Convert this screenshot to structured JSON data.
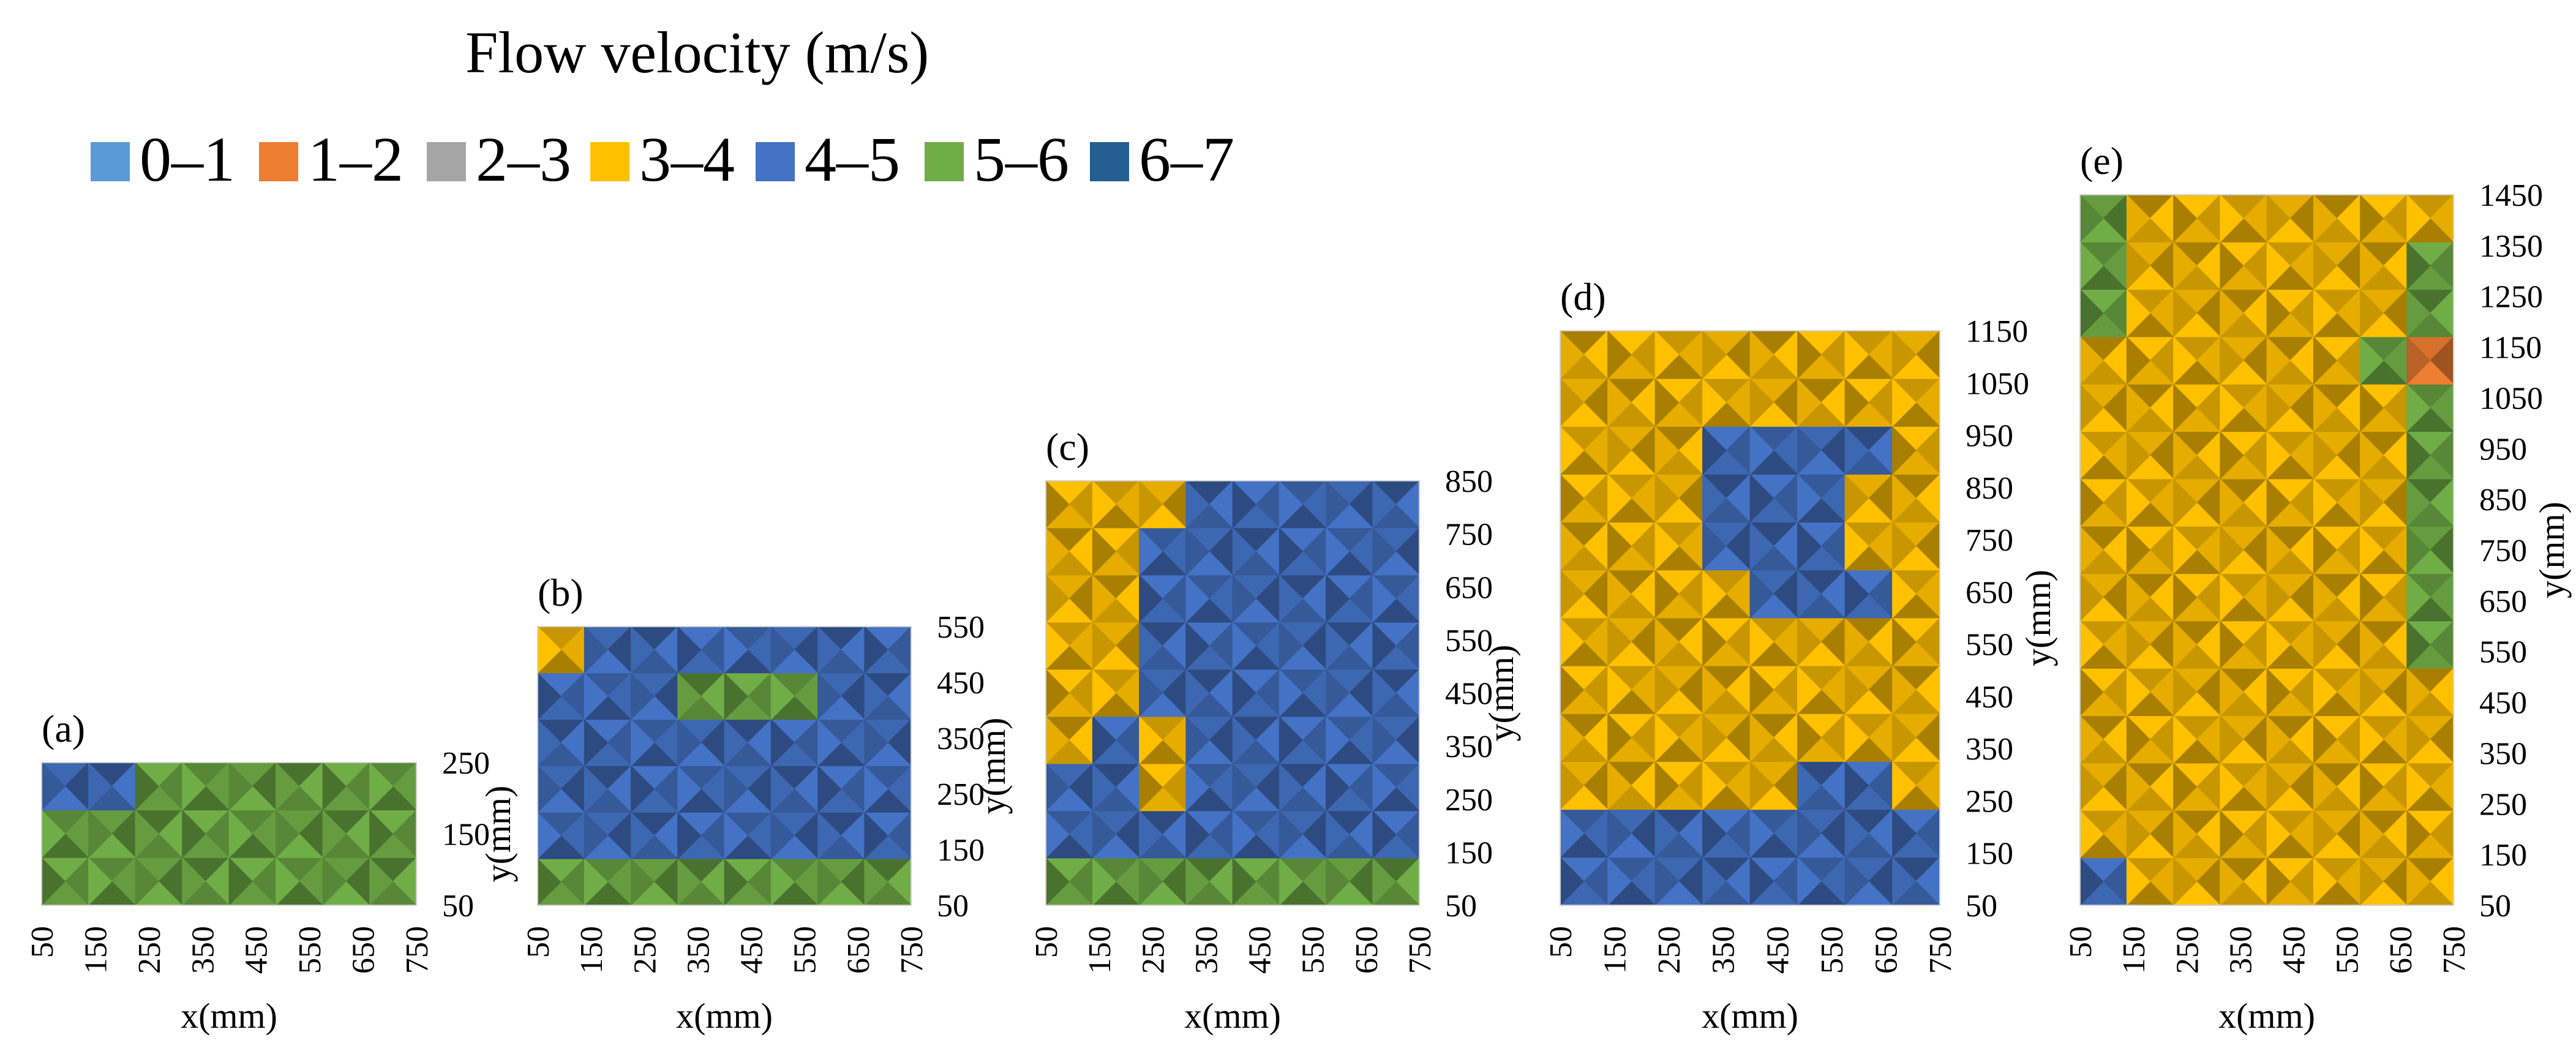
{
  "chart_data": {
    "type": "heatmap",
    "title": "Flow velocity (m/s)",
    "legend": [
      {
        "label": "0–1",
        "color": "#5b9bd5"
      },
      {
        "label": "1–2",
        "color": "#ed7d31"
      },
      {
        "label": "2–3",
        "color": "#a5a5a5"
      },
      {
        "label": "3–4",
        "color": "#ffc000"
      },
      {
        "label": "4–5",
        "color": "#4472c4"
      },
      {
        "label": "5–6",
        "color": "#70ad47"
      },
      {
        "label": "6–7",
        "color": "#255e91"
      }
    ],
    "x": [
      50,
      150,
      250,
      350,
      450,
      550,
      650,
      750
    ],
    "xlabel": "x(mm)",
    "ylabel": "y(mm)",
    "panels": [
      {
        "label": "(a)",
        "y": [
          50,
          150,
          250
        ],
        "ylim": [
          50,
          250
        ],
        "rows": [
          "GGGGGGGG",
          "GGGGGGGG",
          "BBGGGGGG"
        ]
      },
      {
        "label": "(b)",
        "y": [
          50,
          150,
          250,
          350,
          450,
          550
        ],
        "ylim": [
          50,
          550
        ],
        "rows": [
          "GGGGGGGG",
          "BBBBBBBB",
          "BBBBBBBB",
          "BBBBBBBB",
          "BBBGGGBB",
          "YBBBBBBB"
        ]
      },
      {
        "label": "(c)",
        "y": [
          50,
          150,
          250,
          350,
          450,
          550,
          650,
          750,
          850
        ],
        "ylim": [
          50,
          850
        ],
        "rows": [
          "GGGGGGGG",
          "BBBBBBBB",
          "BBYBBBBB",
          "YBYBBBBB",
          "YYBBBBBB",
          "YYBBBBBB",
          "YYBBBBBB",
          "YYBBBBBB",
          "YYYBBBBB"
        ]
      },
      {
        "label": "(d)",
        "y": [
          50,
          150,
          250,
          350,
          450,
          550,
          650,
          750,
          850,
          950,
          1050,
          1150
        ],
        "ylim": [
          50,
          1150
        ],
        "rows": [
          "BBBBBBBB",
          "BBBBBBBB",
          "YYYYYBBY",
          "YYYYYYYY",
          "YYYYYYYY",
          "YYYYYYYY",
          "YYYYBBBY",
          "YYYBBBYY",
          "YYYBBBYY",
          "YYYBBBBY",
          "YYYYYYYY",
          "YYYYYYYY"
        ]
      },
      {
        "label": "(e)",
        "y": [
          50,
          150,
          250,
          350,
          450,
          550,
          650,
          750,
          850,
          950,
          1050,
          1150,
          1250,
          1350,
          1450
        ],
        "ylim": [
          50,
          1450
        ],
        "rows": [
          "BYYYYYYY",
          "YYYYYYYY",
          "YYYYYYYY",
          "YYYYYYYY",
          "YYYYYYYY",
          "YYYYYYYG",
          "YYYYYYYG",
          "YYYYYYYG",
          "YYYYYYYG",
          "YYYYYYYG",
          "YYYYYYYG",
          "YYYYYYGO",
          "GYYYYYYG",
          "GYYYYYYG",
          "GYYYYYYY"
        ]
      }
    ],
    "category_key": {
      "B": "4–5",
      "G": "5–6",
      "Y": "3–4",
      "O": "1–2"
    }
  }
}
